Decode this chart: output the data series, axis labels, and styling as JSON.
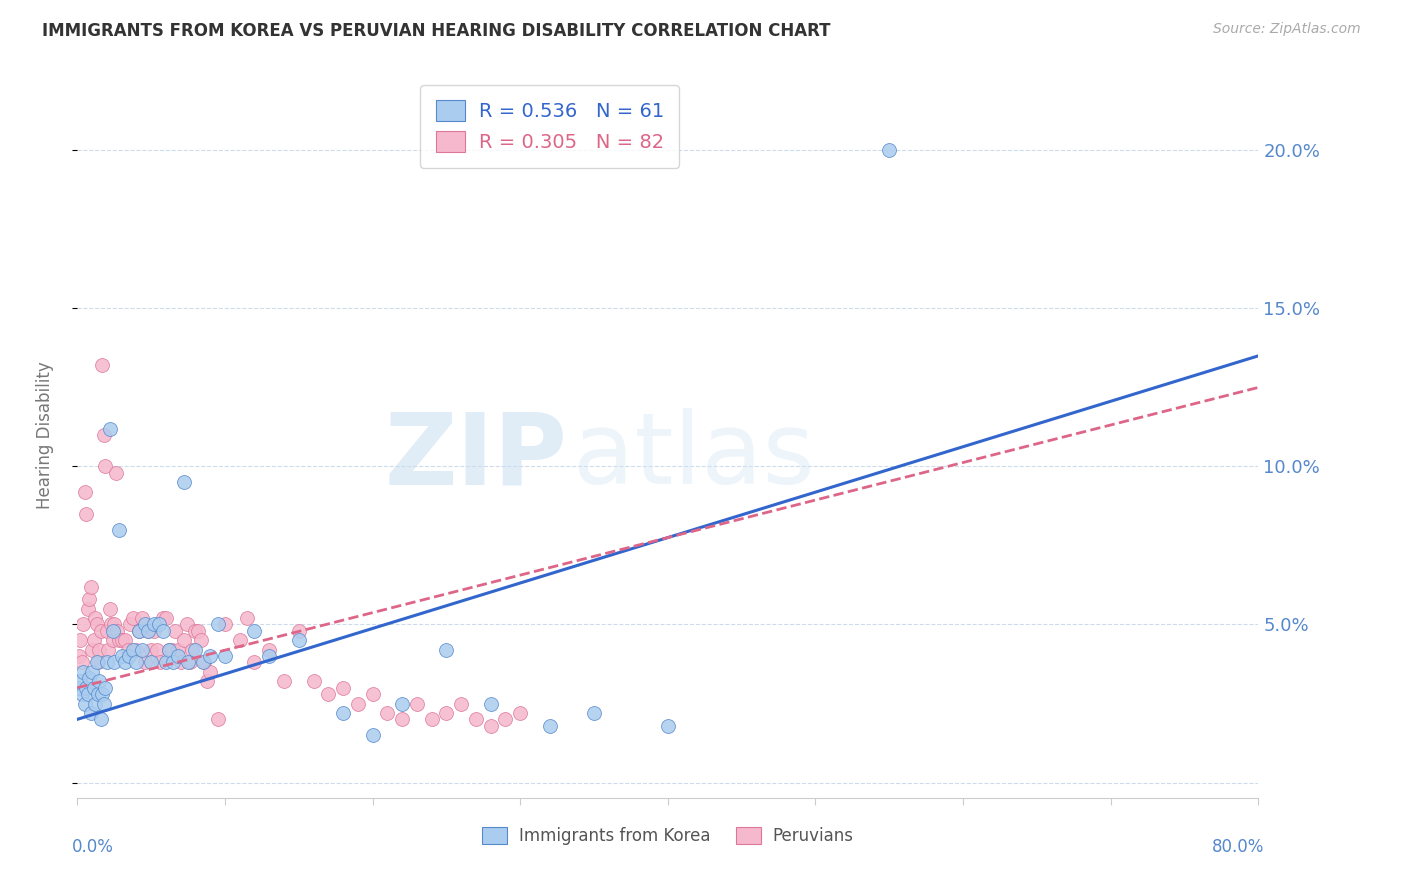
{
  "title": "IMMIGRANTS FROM KOREA VS PERUVIAN HEARING DISABILITY CORRELATION CHART",
  "source": "Source: ZipAtlas.com",
  "ylabel": "Hearing Disability",
  "xlim": [
    0,
    0.8
  ],
  "ylim": [
    -0.005,
    0.225
  ],
  "yticks": [
    0.0,
    0.05,
    0.1,
    0.15,
    0.2
  ],
  "blue_color": "#aaccee",
  "pink_color": "#f5b8cc",
  "blue_edge_color": "#5588cc",
  "pink_edge_color": "#dd7799",
  "blue_line_color": "#3366cc",
  "pink_line_color": "#dd6688",
  "legend_label_blue": "Immigrants from Korea",
  "legend_label_pink": "Peruvians",
  "korea_points": [
    [
      0.001,
      0.03
    ],
    [
      0.002,
      0.032
    ],
    [
      0.003,
      0.028
    ],
    [
      0.004,
      0.035
    ],
    [
      0.005,
      0.025
    ],
    [
      0.006,
      0.03
    ],
    [
      0.007,
      0.028
    ],
    [
      0.008,
      0.033
    ],
    [
      0.009,
      0.022
    ],
    [
      0.01,
      0.035
    ],
    [
      0.011,
      0.03
    ],
    [
      0.012,
      0.025
    ],
    [
      0.013,
      0.038
    ],
    [
      0.014,
      0.028
    ],
    [
      0.015,
      0.032
    ],
    [
      0.016,
      0.02
    ],
    [
      0.017,
      0.028
    ],
    [
      0.018,
      0.025
    ],
    [
      0.019,
      0.03
    ],
    [
      0.02,
      0.038
    ],
    [
      0.022,
      0.112
    ],
    [
      0.024,
      0.048
    ],
    [
      0.025,
      0.038
    ],
    [
      0.028,
      0.08
    ],
    [
      0.03,
      0.04
    ],
    [
      0.032,
      0.038
    ],
    [
      0.035,
      0.04
    ],
    [
      0.038,
      0.042
    ],
    [
      0.04,
      0.038
    ],
    [
      0.042,
      0.048
    ],
    [
      0.044,
      0.042
    ],
    [
      0.046,
      0.05
    ],
    [
      0.048,
      0.048
    ],
    [
      0.05,
      0.038
    ],
    [
      0.052,
      0.05
    ],
    [
      0.055,
      0.05
    ],
    [
      0.058,
      0.048
    ],
    [
      0.06,
      0.038
    ],
    [
      0.062,
      0.042
    ],
    [
      0.065,
      0.038
    ],
    [
      0.068,
      0.04
    ],
    [
      0.072,
      0.095
    ],
    [
      0.075,
      0.038
    ],
    [
      0.08,
      0.042
    ],
    [
      0.085,
      0.038
    ],
    [
      0.09,
      0.04
    ],
    [
      0.095,
      0.05
    ],
    [
      0.1,
      0.04
    ],
    [
      0.12,
      0.048
    ],
    [
      0.13,
      0.04
    ],
    [
      0.15,
      0.045
    ],
    [
      0.18,
      0.022
    ],
    [
      0.2,
      0.015
    ],
    [
      0.22,
      0.025
    ],
    [
      0.25,
      0.042
    ],
    [
      0.28,
      0.025
    ],
    [
      0.32,
      0.018
    ],
    [
      0.35,
      0.022
    ],
    [
      0.4,
      0.018
    ],
    [
      0.55,
      0.2
    ]
  ],
  "peru_points": [
    [
      0.001,
      0.04
    ],
    [
      0.002,
      0.045
    ],
    [
      0.003,
      0.038
    ],
    [
      0.004,
      0.05
    ],
    [
      0.005,
      0.092
    ],
    [
      0.006,
      0.085
    ],
    [
      0.007,
      0.055
    ],
    [
      0.008,
      0.058
    ],
    [
      0.009,
      0.062
    ],
    [
      0.01,
      0.042
    ],
    [
      0.011,
      0.045
    ],
    [
      0.012,
      0.052
    ],
    [
      0.013,
      0.05
    ],
    [
      0.014,
      0.038
    ],
    [
      0.015,
      0.042
    ],
    [
      0.016,
      0.048
    ],
    [
      0.017,
      0.132
    ],
    [
      0.018,
      0.11
    ],
    [
      0.019,
      0.1
    ],
    [
      0.02,
      0.048
    ],
    [
      0.021,
      0.042
    ],
    [
      0.022,
      0.055
    ],
    [
      0.023,
      0.05
    ],
    [
      0.024,
      0.045
    ],
    [
      0.025,
      0.05
    ],
    [
      0.026,
      0.098
    ],
    [
      0.027,
      0.048
    ],
    [
      0.028,
      0.045
    ],
    [
      0.03,
      0.045
    ],
    [
      0.032,
      0.045
    ],
    [
      0.034,
      0.042
    ],
    [
      0.036,
      0.05
    ],
    [
      0.038,
      0.052
    ],
    [
      0.04,
      0.042
    ],
    [
      0.042,
      0.048
    ],
    [
      0.044,
      0.052
    ],
    [
      0.046,
      0.038
    ],
    [
      0.048,
      0.048
    ],
    [
      0.05,
      0.042
    ],
    [
      0.052,
      0.048
    ],
    [
      0.054,
      0.042
    ],
    [
      0.056,
      0.038
    ],
    [
      0.058,
      0.052
    ],
    [
      0.06,
      0.052
    ],
    [
      0.062,
      0.042
    ],
    [
      0.064,
      0.042
    ],
    [
      0.066,
      0.048
    ],
    [
      0.068,
      0.042
    ],
    [
      0.07,
      0.038
    ],
    [
      0.072,
      0.045
    ],
    [
      0.074,
      0.05
    ],
    [
      0.076,
      0.038
    ],
    [
      0.078,
      0.042
    ],
    [
      0.08,
      0.048
    ],
    [
      0.082,
      0.048
    ],
    [
      0.084,
      0.045
    ],
    [
      0.086,
      0.038
    ],
    [
      0.088,
      0.032
    ],
    [
      0.09,
      0.035
    ],
    [
      0.095,
      0.02
    ],
    [
      0.1,
      0.05
    ],
    [
      0.11,
      0.045
    ],
    [
      0.115,
      0.052
    ],
    [
      0.12,
      0.038
    ],
    [
      0.13,
      0.042
    ],
    [
      0.14,
      0.032
    ],
    [
      0.15,
      0.048
    ],
    [
      0.16,
      0.032
    ],
    [
      0.17,
      0.028
    ],
    [
      0.18,
      0.03
    ],
    [
      0.19,
      0.025
    ],
    [
      0.2,
      0.028
    ],
    [
      0.21,
      0.022
    ],
    [
      0.22,
      0.02
    ],
    [
      0.23,
      0.025
    ],
    [
      0.24,
      0.02
    ],
    [
      0.25,
      0.022
    ],
    [
      0.26,
      0.025
    ],
    [
      0.27,
      0.02
    ],
    [
      0.28,
      0.018
    ],
    [
      0.29,
      0.02
    ],
    [
      0.3,
      0.022
    ]
  ],
  "korea_line": {
    "x0": 0.0,
    "y0": 0.02,
    "x1": 0.8,
    "y1": 0.135
  },
  "peru_line": {
    "x0": 0.0,
    "y0": 0.03,
    "x1": 0.8,
    "y1": 0.125
  }
}
